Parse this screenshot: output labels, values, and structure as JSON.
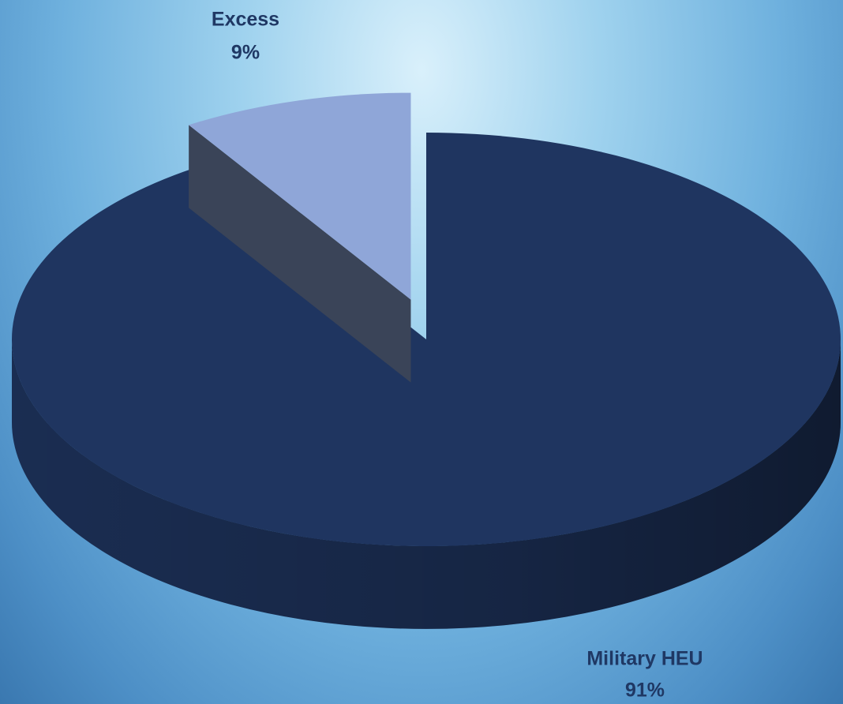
{
  "chart_data": {
    "type": "pie",
    "categories": [
      "Military HEU",
      "Excess"
    ],
    "values": [
      91,
      9
    ],
    "value_labels": [
      "91%",
      "9%"
    ],
    "colors": [
      "#1f3560",
      "#8fa6d8"
    ]
  }
}
